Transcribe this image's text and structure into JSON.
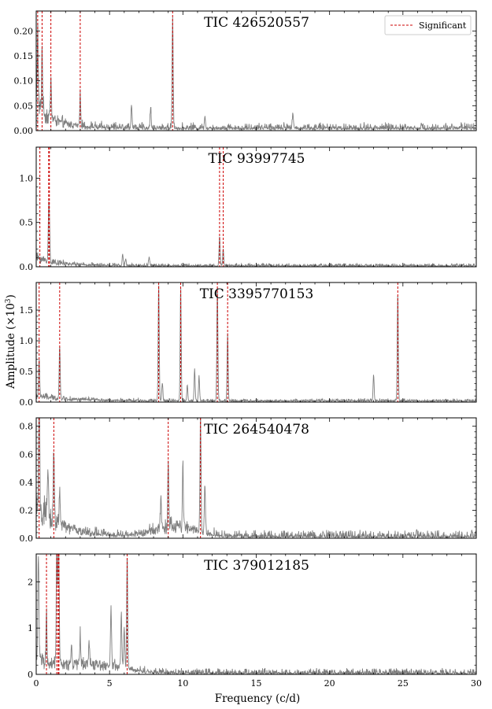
{
  "chart_data": {
    "type": "line",
    "xlabel": "Frequency (c/d)",
    "ylabel": "Amplitude (×10",
    "ylabel_sup": "3",
    "ylabel_close": ")",
    "xlim": [
      0,
      30
    ],
    "xticks": [
      0,
      5,
      10,
      15,
      20,
      25,
      30
    ],
    "legend": {
      "label": "Significant",
      "placement": "top-right"
    },
    "colors": {
      "spectrum": "#7f7f7f",
      "significant": "#cc0000",
      "axes": "#000000"
    },
    "panels": [
      {
        "title": "TIC 426520557",
        "ylim": [
          0,
          0.24
        ],
        "yticks": [
          0.0,
          0.05,
          0.1,
          0.15,
          0.2
        ],
        "yticklabels": [
          "0.00",
          "0.05",
          "0.10",
          "0.15",
          "0.20"
        ],
        "significant": [
          0.1,
          0.4,
          1.0,
          3.0,
          9.3
        ],
        "peaks": [
          [
            0.1,
            0.16
          ],
          [
            0.4,
            0.13
          ],
          [
            1.0,
            0.08
          ],
          [
            3.0,
            0.06
          ],
          [
            9.3,
            0.22
          ],
          [
            6.5,
            0.045
          ],
          [
            7.8,
            0.04
          ],
          [
            11.5,
            0.025
          ],
          [
            17.5,
            0.03
          ]
        ],
        "noise": {
          "base": 0.005,
          "ramp": 0.06,
          "decay": 1.2,
          "spread": 0.012,
          "humps": []
        }
      },
      {
        "title": "TIC 93997745",
        "ylim": [
          0,
          1.35
        ],
        "yticks": [
          0.0,
          0.5,
          1.0
        ],
        "yticklabels": [
          "0.0",
          "0.5",
          "1.0"
        ],
        "significant": [
          0.25,
          0.85,
          0.9,
          12.5,
          12.75
        ],
        "peaks": [
          [
            0.85,
            0.5
          ],
          [
            0.9,
            0.35
          ],
          [
            12.5,
            0.32
          ],
          [
            12.75,
            0.18
          ],
          [
            5.9,
            0.12
          ],
          [
            7.7,
            0.1
          ],
          [
            6.1,
            0.08
          ]
        ],
        "noise": {
          "base": 0.01,
          "ramp": 0.12,
          "decay": 1.5,
          "spread": 0.03,
          "humps": []
        }
      },
      {
        "title": "TIC 3395770153",
        "ylim": [
          0,
          1.95
        ],
        "yticks": [
          0.0,
          0.5,
          1.0,
          1.5
        ],
        "yticklabels": [
          "0.0",
          "0.5",
          "1.0",
          "1.5"
        ],
        "significant": [
          0.2,
          1.6,
          8.35,
          9.85,
          12.35,
          13.05,
          24.65
        ],
        "peaks": [
          [
            0.2,
            0.6
          ],
          [
            1.6,
            0.85
          ],
          [
            8.35,
            1.9
          ],
          [
            9.85,
            1.85
          ],
          [
            12.35,
            1.85
          ],
          [
            13.05,
            1.1
          ],
          [
            24.65,
            1.75
          ],
          [
            23.0,
            0.42
          ],
          [
            10.8,
            0.5
          ],
          [
            11.1,
            0.4
          ],
          [
            8.6,
            0.3
          ],
          [
            10.3,
            0.25
          ]
        ],
        "noise": {
          "base": 0.02,
          "ramp": 0.12,
          "decay": 2.0,
          "spread": 0.04,
          "humps": []
        }
      },
      {
        "title": "TIC 264540478",
        "ylim": [
          0,
          0.86
        ],
        "yticks": [
          0.0,
          0.2,
          0.4,
          0.6,
          0.8
        ],
        "yticklabels": [
          "0.0",
          "0.2",
          "0.4",
          "0.6",
          "0.8"
        ],
        "significant": [
          0.2,
          1.2,
          9.0,
          11.2
        ],
        "peaks": [
          [
            0.2,
            0.84
          ],
          [
            1.2,
            0.55
          ],
          [
            9.0,
            0.45
          ],
          [
            11.2,
            0.84
          ],
          [
            10.0,
            0.42
          ],
          [
            11.5,
            0.35
          ],
          [
            8.5,
            0.22
          ],
          [
            1.6,
            0.25
          ],
          [
            0.8,
            0.3
          ]
        ],
        "noise": {
          "base": 0.01,
          "ramp": 0.3,
          "decay": 1.6,
          "spread": 0.05,
          "humps": [
            [
              9.5,
              2.0,
              0.09
            ]
          ]
        }
      },
      {
        "title": "TIC 379012185",
        "ylim": [
          0,
          2.6
        ],
        "yticks": [
          0,
          1,
          2
        ],
        "yticklabels": [
          "0",
          "1",
          "2"
        ],
        "significant": [
          0.7,
          1.4,
          1.5,
          1.55,
          6.2
        ],
        "peaks": [
          [
            0.15,
            2.4
          ],
          [
            1.4,
            2.6
          ],
          [
            1.5,
            2.0
          ],
          [
            1.55,
            1.5
          ],
          [
            0.7,
            1.0
          ],
          [
            6.2,
            2.4
          ],
          [
            5.1,
            1.3
          ],
          [
            5.8,
            1.2
          ],
          [
            6.0,
            0.9
          ],
          [
            3.0,
            0.65
          ],
          [
            3.6,
            0.5
          ],
          [
            2.4,
            0.45
          ]
        ],
        "noise": {
          "base": 0.02,
          "ramp": 0.4,
          "decay": 0.8,
          "spread": 0.12,
          "humps": [
            [
              3.5,
              3.0,
              0.25
            ]
          ]
        }
      }
    ]
  }
}
